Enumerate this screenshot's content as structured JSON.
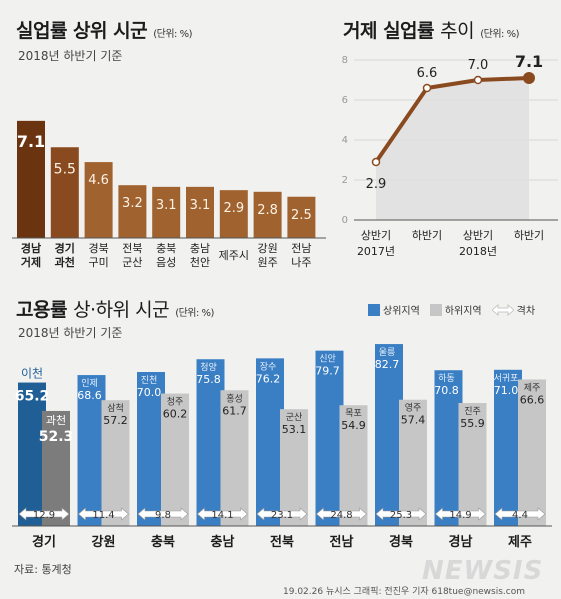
{
  "chart1": {
    "title": "실업률 상위 시군",
    "unit": "(단위: %)",
    "subtitle": "2018년 하반기 기준",
    "chart_data": {
      "type": "bar",
      "categories": [
        "경남\n거제",
        "경기\n과천",
        "경북\n구미",
        "전북\n군산",
        "충북\n음성",
        "충남\n천안",
        "제주시",
        "강원\n원주",
        "전남\n나주"
      ],
      "values": [
        7.1,
        5.5,
        4.6,
        3.2,
        3.1,
        3.1,
        2.9,
        2.8,
        2.5
      ],
      "value_labels": [
        "7.1",
        "5.5",
        "4.6",
        "3.2",
        "3.1",
        "3.1",
        "2.9",
        "2.8",
        "2.5"
      ],
      "ylim": [
        0,
        8
      ]
    }
  },
  "chart2": {
    "title": "거제 실업률",
    "title_thin": "추이",
    "unit": "(단위: %)",
    "chart_data": {
      "type": "line",
      "categories": [
        "상반기\n2017년",
        "하반기",
        "상반기\n2018년",
        "하반기"
      ],
      "values": [
        2.9,
        6.6,
        7.0,
        7.1
      ],
      "value_labels": [
        "2.9",
        "6.6",
        "7.0",
        "7.1"
      ],
      "yticks": [
        "0",
        "2",
        "4",
        "6",
        "8"
      ],
      "ylim": [
        0,
        8
      ],
      "grid": true
    }
  },
  "chart3": {
    "title": "고용률",
    "title_thin": "상·하위 시군",
    "unit": "(단위: %)",
    "subtitle": "2018년 하반기 기준",
    "legend": [
      "상위지역",
      "하위지역",
      "격차"
    ],
    "colors": {
      "upper_top": "#1f5f96",
      "upper": "#3a7ec4",
      "lower_top": "#7c7c7c",
      "lower": "#c6c6c6"
    },
    "chart_data": {
      "type": "bar",
      "categories": [
        "경기",
        "강원",
        "충북",
        "충남",
        "전북",
        "전남",
        "경북",
        "경남",
        "제주"
      ],
      "series": [
        {
          "name": "상위지역",
          "areas": [
            "이천",
            "인제",
            "진천",
            "청양",
            "장수",
            "신안",
            "울릉",
            "하동",
            "서귀포"
          ],
          "values": [
            65.2,
            68.6,
            70.0,
            75.8,
            76.2,
            79.7,
            82.7,
            70.8,
            71.0
          ]
        },
        {
          "name": "하위지역",
          "areas": [
            "과천",
            "삼척",
            "청주",
            "홍성",
            "군산",
            "목포",
            "영주",
            "진주",
            "제주"
          ],
          "values": [
            52.3,
            57.2,
            60.2,
            61.7,
            53.1,
            54.9,
            57.4,
            55.9,
            66.6
          ]
        },
        {
          "name": "격차",
          "values": [
            12.9,
            11.4,
            9.8,
            14.1,
            23.1,
            24.8,
            25.3,
            14.9,
            4.4
          ]
        }
      ],
      "value_labels": {
        "upper": [
          "65.2",
          "68.6",
          "70.0",
          "75.8",
          "76.2",
          "79.7",
          "82.7",
          "70.8",
          "71.0"
        ],
        "lower": [
          "52.3",
          "57.2",
          "60.2",
          "61.7",
          "53.1",
          "54.9",
          "57.4",
          "55.9",
          "66.6"
        ],
        "gap": [
          "12.9",
          "11.4",
          "9.8",
          "14.1",
          "23.1",
          "24.8",
          "25.3",
          "14.9",
          "4.4"
        ]
      }
    }
  },
  "source": "자료: 통계청",
  "credit": "19.02.26 뉴시스 그래픽: 전진우 기자 618tue@newsis.com",
  "brand": "NEWSIS"
}
